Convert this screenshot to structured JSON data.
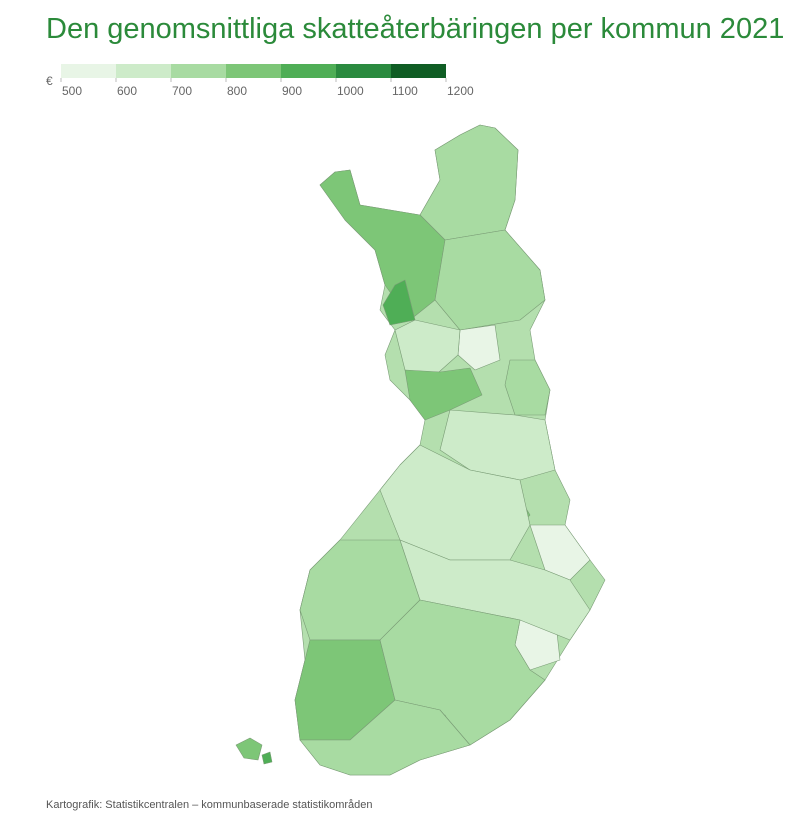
{
  "title": "Den genomsnittliga skatteåterbäringen per kommun 2021",
  "legend": {
    "unit": "€",
    "ticks": [
      500,
      600,
      700,
      800,
      900,
      1000,
      1100,
      1200
    ],
    "colors": [
      "#e8f5e6",
      "#cdebc9",
      "#a8dba2",
      "#7dc677",
      "#4fae56",
      "#2a8a3f",
      "#0f5d24"
    ]
  },
  "footer": "Kartografik: Statistikcentralen – kommunbaserade statistikområden"
}
